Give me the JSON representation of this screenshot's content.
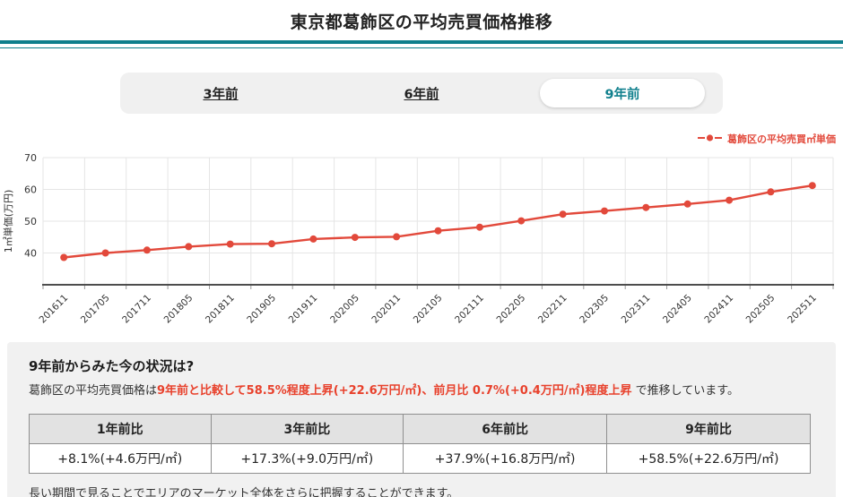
{
  "header": {
    "title": "東京都葛飾区の平均売買価格推移"
  },
  "tabs": [
    {
      "label": "3年前",
      "selected": false
    },
    {
      "label": "6年前",
      "selected": false
    },
    {
      "label": "9年前",
      "selected": true
    }
  ],
  "legend": {
    "label": "葛飾区の平均売買㎡単価"
  },
  "chart_data": {
    "type": "line",
    "x": [
      "201611",
      "201705",
      "201711",
      "201805",
      "201811",
      "201905",
      "201911",
      "202005",
      "202011",
      "202105",
      "202111",
      "202205",
      "202211",
      "202305",
      "202311",
      "202405",
      "202411",
      "202505",
      "202511"
    ],
    "series": [
      {
        "name": "葛飾区の平均売買㎡単価",
        "values": [
          38.6,
          40.0,
          40.9,
          42.0,
          42.8,
          42.9,
          44.4,
          44.9,
          45.1,
          47.0,
          48.1,
          50.1,
          52.2,
          53.2,
          54.3,
          55.4,
          56.6,
          59.2,
          61.2
        ]
      }
    ],
    "ylabel": "1㎡単価(万円)",
    "ylim": [
      30,
      70
    ],
    "yticks": [
      40,
      50,
      60,
      70
    ],
    "grid": true,
    "legend_position": "top-right",
    "line_color": "#e2493b"
  },
  "summary": {
    "heading": "9年前からみた今の状況は?",
    "lead": "葛飾区の平均売買価格は",
    "highlight": "9年前と比較して58.5%程度上昇(+22.6万円/㎡)、前月比 0.7%(+0.4万円/㎡)程度上昇",
    "tail": " で推移しています。",
    "table": {
      "headers": [
        "1年前比",
        "3年前比",
        "6年前比",
        "9年前比"
      ],
      "values": [
        "+8.1%(+4.6万円/㎡)",
        "+17.3%(+9.0万円/㎡)",
        "+37.9%(+16.8万円/㎡)",
        "+58.5%(+22.6万円/㎡)"
      ]
    },
    "note": "長い期間で見ることでエリアのマーケット全体をさらに把握することができます。"
  },
  "colors": {
    "accent_teal": "#0f7f8c",
    "tab_selected_text": "#12818e",
    "line_red": "#e2493b",
    "highlight_red": "#e8412c",
    "panel_bg": "#f1f1f1",
    "table_header_bg": "#e2e2e2",
    "table_border": "#8f8f8f"
  }
}
